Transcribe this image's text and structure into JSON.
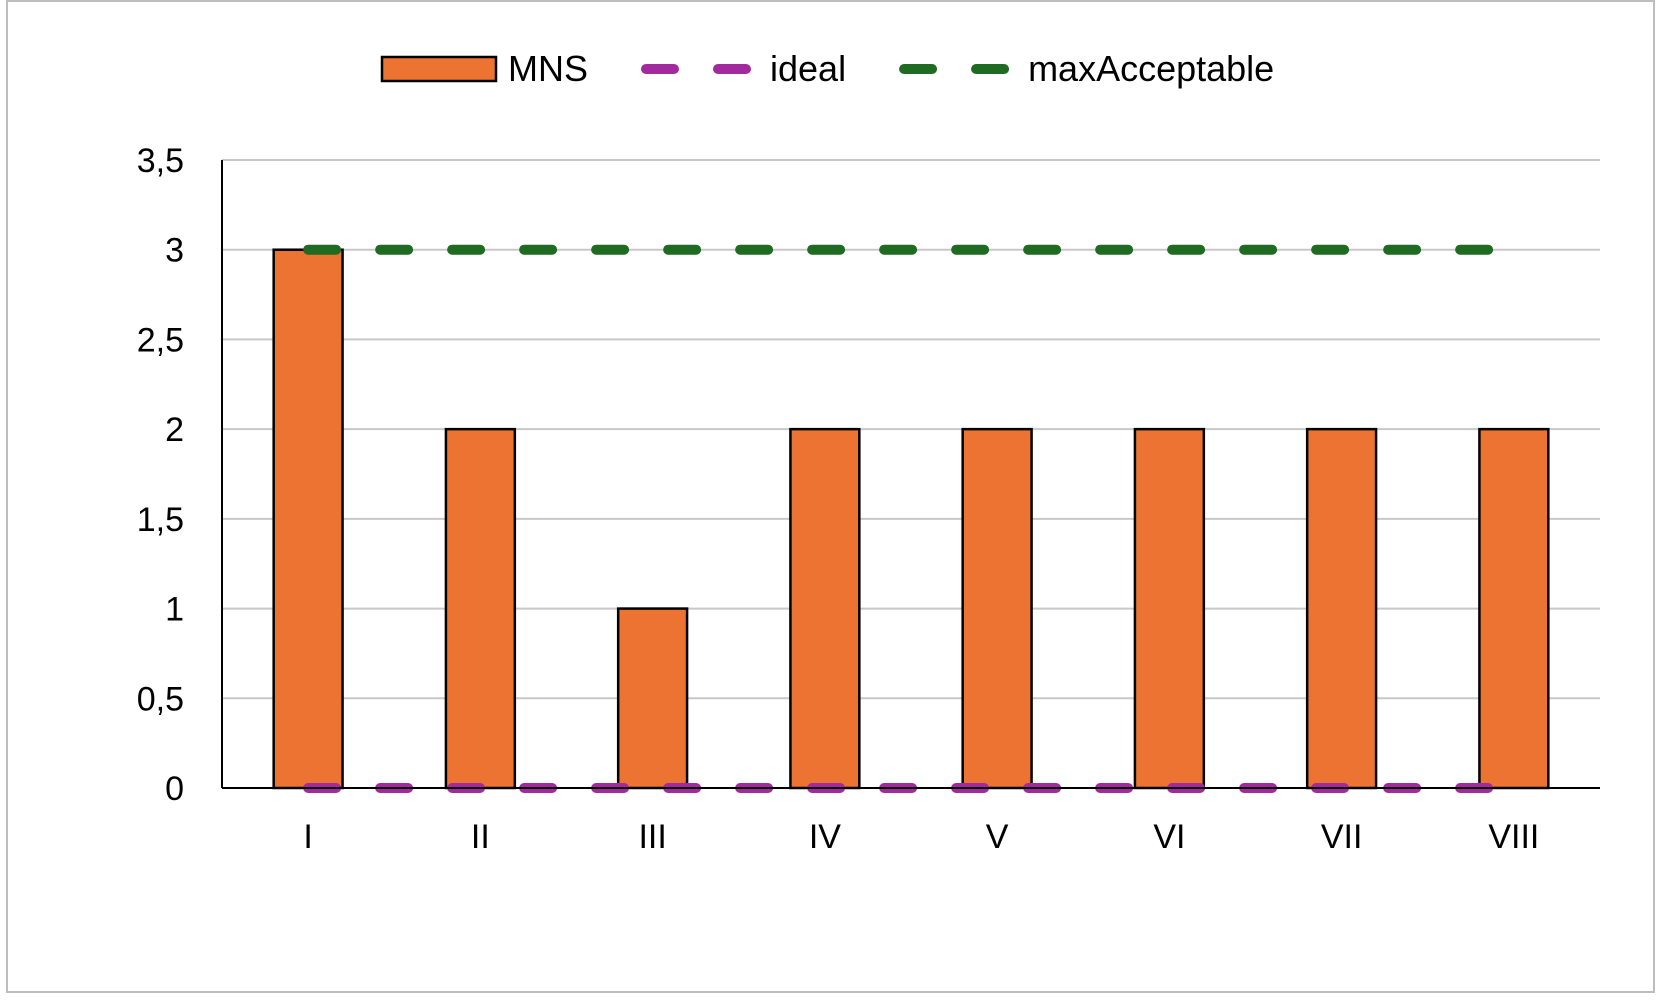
{
  "chart_data": {
    "type": "bar",
    "categories": [
      "I",
      "II",
      "III",
      "IV",
      "V",
      "VI",
      "VII",
      "VIII"
    ],
    "series": [
      {
        "name": "MNS",
        "type": "bar",
        "values": [
          3,
          2,
          1,
          2,
          2,
          2,
          2,
          2
        ],
        "color": "#ed7332"
      },
      {
        "name": "ideal",
        "type": "line",
        "style": "dashed",
        "values": [
          0,
          0,
          0,
          0,
          0,
          0,
          0,
          0
        ],
        "color": "#a32a9e"
      },
      {
        "name": "maxAcceptable",
        "type": "line",
        "style": "dashed",
        "values": [
          3,
          3,
          3,
          3,
          3,
          3,
          3,
          3
        ],
        "color": "#1e6b21"
      }
    ],
    "ylim": [
      0,
      3.5
    ],
    "yticks": [
      "0",
      "0,5",
      "1",
      "1,5",
      "2",
      "2,5",
      "3",
      "3,5"
    ],
    "grid": true,
    "legend_position": "top"
  }
}
